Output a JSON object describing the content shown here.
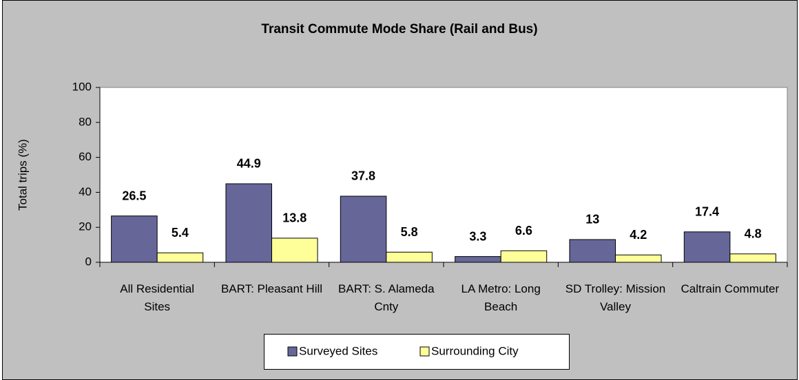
{
  "chart_data": {
    "type": "bar",
    "title": "Transit Commute Mode Share (Rail and Bus)",
    "y_label": "Total trips (%)",
    "categories": [
      "All Residential Sites",
      "BART: Pleasant Hill",
      "BART: S. Alameda Cnty",
      "LA Metro: Long Beach",
      "SD Trolley: Mission Valley",
      "Caltrain Commuter"
    ],
    "series": [
      {
        "name": "Surveyed Sites",
        "color": "#666699",
        "values": [
          26.5,
          44.9,
          37.8,
          3.3,
          13,
          17.4
        ]
      },
      {
        "name": "Surrounding City",
        "color": "#ffff99",
        "values": [
          5.4,
          13.8,
          5.8,
          6.6,
          4.2,
          4.8
        ]
      }
    ],
    "ylim": [
      0,
      100
    ],
    "yticks": [
      0,
      20,
      40,
      60,
      80,
      100
    ],
    "grid": false,
    "legend": "bottom"
  }
}
